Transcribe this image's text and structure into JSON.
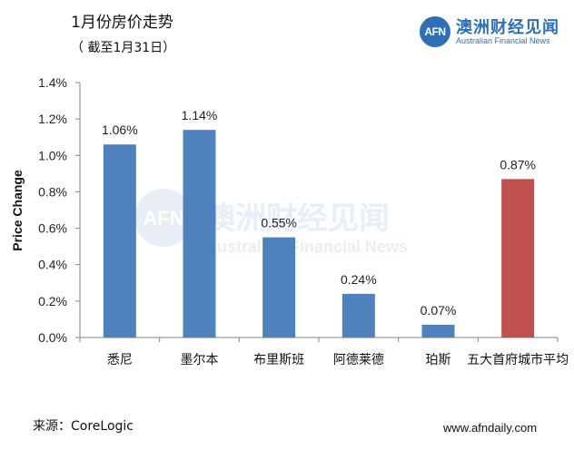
{
  "title": "1月份房价走势",
  "subtitle": "（ 截至1月31日）",
  "logo": {
    "mark": "AFN",
    "name_cn": "澳洲财经见闻",
    "name_en": "Australian Financial News"
  },
  "watermark": {
    "mark": "AFN",
    "name_cn": "澳洲财经见闻",
    "name_en": "Australian Financial News"
  },
  "source": "来源：CoreLogic",
  "website": "www.afndaily.com",
  "colors": {
    "bar_primary": "#4f81bd",
    "bar_highlight": "#c0504d",
    "axis": "#868686",
    "logo": "#2f6fb6"
  },
  "chart_data": {
    "type": "bar",
    "title": "1月份房价走势",
    "xlabel": "",
    "ylabel": "Price Change",
    "categories": [
      "悉尼",
      "墨尔本",
      "布里斯班",
      "阿德莱德",
      "珀斯",
      "五大首府城市平均"
    ],
    "values": [
      1.06,
      1.14,
      0.55,
      0.24,
      0.07,
      0.87
    ],
    "data_labels": [
      "1.06%",
      "1.14%",
      "0.55%",
      "0.24%",
      "0.07%",
      "0.87%"
    ],
    "highlight": [
      false,
      false,
      false,
      false,
      false,
      true
    ],
    "ylim": [
      0,
      1.4
    ],
    "yticks": [
      0,
      0.2,
      0.4,
      0.6,
      0.8,
      1.0,
      1.2,
      1.4
    ],
    "ytick_labels": [
      "0.0%",
      "0.2%",
      "0.4%",
      "0.6%",
      "0.8%",
      "1.0%",
      "1.2%",
      "1.4%"
    ],
    "grid": false,
    "legend": "none"
  }
}
